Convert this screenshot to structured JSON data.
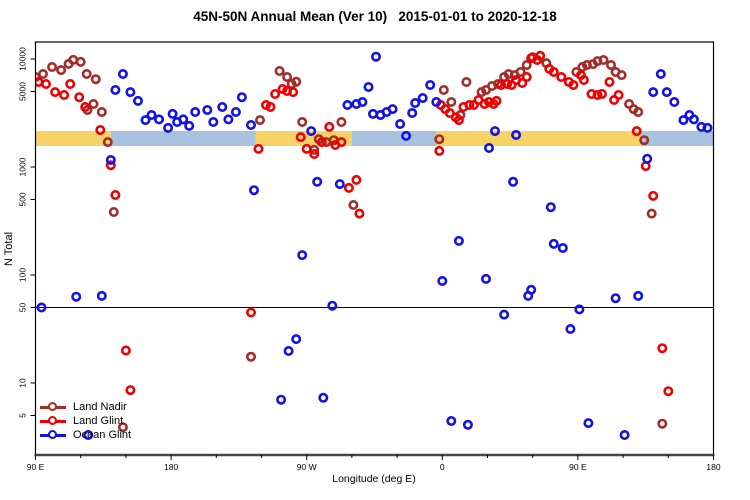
{
  "title": "45N-50N Annual Mean (Ver 10)   2015-01-01 to 2020-12-18",
  "legend": {
    "items": [
      {
        "label": "Land Nadir",
        "color": "#A52A2A"
      },
      {
        "label": "Land Glint",
        "color": "#EE0000"
      },
      {
        "label": "Ocean Glint",
        "color": "#1111E8"
      }
    ]
  },
  "chart_data": {
    "type": "scatter",
    "title": "45N-50N Annual Mean (Ver 10)   2015-01-01 to 2020-12-18",
    "xlabel": "Longitude (deg E)",
    "ylabel": "N Total",
    "x_axis": {
      "range": [
        90,
        540
      ],
      "major_ticks": [
        {
          "value": 90,
          "label": "90 E"
        },
        {
          "value": 180,
          "label": "180"
        },
        {
          "value": 270,
          "label": "90 W"
        },
        {
          "value": 360,
          "label": "0"
        },
        {
          "value": 450,
          "label": "90 E"
        },
        {
          "value": 540,
          "label": "180"
        }
      ],
      "minor_step": 30
    },
    "y_axis": {
      "scale": "log",
      "range": [
        2.15,
        14350
      ],
      "ticks": [
        10000,
        5000,
        1000,
        500,
        100,
        50,
        10,
        5
      ]
    },
    "reference_line": {
      "value": 50,
      "color": "#000000"
    },
    "bands": {
      "yellow": {
        "color": "#F7D267",
        "value_range": [
          1565,
          2155
        ],
        "segments": [
          [
            90,
            540
          ]
        ]
      },
      "blue": {
        "color": "#A9C2DF",
        "value_range": [
          1565,
          2155
        ],
        "segments": [
          [
            140,
            236
          ],
          [
            300,
            356
          ],
          [
            492,
            540
          ]
        ]
      }
    },
    "grid": false,
    "legend_position": "bottom-left",
    "series": [
      {
        "name": "Land Nadir",
        "color": "#A52A2A",
        "points": [
          [
            90,
            6800
          ],
          [
            95,
            7260
          ],
          [
            101,
            8430
          ],
          [
            107,
            7900
          ],
          [
            112,
            9000
          ],
          [
            115,
            9800
          ],
          [
            120,
            9400
          ],
          [
            124,
            7260
          ],
          [
            130,
            6500
          ],
          [
            124.5,
            3370
          ],
          [
            128.5,
            3830
          ],
          [
            134,
            3230
          ],
          [
            138,
            1700
          ],
          [
            142,
            383
          ],
          [
            148,
            3.9
          ],
          [
            233,
            17.5
          ],
          [
            239,
            2720
          ],
          [
            252,
            7740
          ],
          [
            257,
            6810
          ],
          [
            260,
            5870
          ],
          [
            263,
            6150
          ],
          [
            267,
            2610
          ],
          [
            275,
            1440
          ],
          [
            278,
            1810
          ],
          [
            283,
            1700
          ],
          [
            288,
            1770
          ],
          [
            293,
            2610
          ],
          [
            301,
            445
          ],
          [
            358,
            1810
          ],
          [
            361,
            5160
          ],
          [
            366,
            4000
          ],
          [
            372,
            3030
          ],
          [
            376,
            6130
          ],
          [
            386,
            4940
          ],
          [
            389,
            5160
          ],
          [
            393,
            5620
          ],
          [
            397,
            5870
          ],
          [
            401,
            6810
          ],
          [
            404,
            7260
          ],
          [
            408,
            7100
          ],
          [
            412,
            7580
          ],
          [
            416,
            8800
          ],
          [
            420,
            10400
          ],
          [
            429,
            9170
          ],
          [
            449,
            7580
          ],
          [
            453,
            8430
          ],
          [
            456,
            8800
          ],
          [
            460,
            8970
          ],
          [
            463,
            9560
          ],
          [
            467,
            9790
          ],
          [
            472,
            8800
          ],
          [
            475,
            7580
          ],
          [
            479,
            7100
          ],
          [
            484,
            3830
          ],
          [
            487,
            3440
          ],
          [
            490,
            3230
          ],
          [
            494,
            1770
          ],
          [
            499,
            370
          ],
          [
            506,
            4.2
          ]
        ]
      },
      {
        "name": "Land Glint",
        "color": "#EE0000",
        "points": [
          [
            92,
            6130
          ],
          [
            97,
            5870
          ],
          [
            103,
            4940
          ],
          [
            109,
            4640
          ],
          [
            113,
            5870
          ],
          [
            119,
            4430
          ],
          [
            123,
            3590
          ],
          [
            133,
            2200
          ],
          [
            140,
            1040
          ],
          [
            143,
            550
          ],
          [
            150,
            20
          ],
          [
            153,
            8.6
          ],
          [
            233,
            45
          ],
          [
            238,
            1470
          ],
          [
            243,
            3750
          ],
          [
            246,
            3590
          ],
          [
            249,
            4740
          ],
          [
            254,
            5280
          ],
          [
            257,
            5050
          ],
          [
            261,
            4940
          ],
          [
            266,
            1890
          ],
          [
            270,
            1470
          ],
          [
            275,
            1320
          ],
          [
            280,
            1700
          ],
          [
            285,
            2350
          ],
          [
            289,
            1600
          ],
          [
            293,
            1700
          ],
          [
            298,
            640
          ],
          [
            303,
            760
          ],
          [
            305,
            370
          ],
          [
            358,
            1410
          ],
          [
            359,
            3750
          ],
          [
            362,
            3440
          ],
          [
            365,
            3160
          ],
          [
            369,
            2880
          ],
          [
            371,
            2720
          ],
          [
            374,
            3590
          ],
          [
            378,
            3750
          ],
          [
            381,
            3750
          ],
          [
            384,
            4170
          ],
          [
            388,
            3830
          ],
          [
            391,
            4000
          ],
          [
            394,
            3830
          ],
          [
            396,
            4090
          ],
          [
            399,
            5740
          ],
          [
            403,
            5870
          ],
          [
            406,
            5740
          ],
          [
            409,
            6390
          ],
          [
            413,
            6000
          ],
          [
            416,
            6810
          ],
          [
            419,
            10200
          ],
          [
            423,
            9790
          ],
          [
            425,
            10700
          ],
          [
            431,
            8100
          ],
          [
            434,
            7580
          ],
          [
            439,
            6810
          ],
          [
            444,
            6130
          ],
          [
            447,
            5740
          ],
          [
            452,
            7100
          ],
          [
            454,
            6390
          ],
          [
            459,
            4740
          ],
          [
            463,
            4640
          ],
          [
            466,
            4740
          ],
          [
            471,
            6130
          ],
          [
            474,
            4170
          ],
          [
            477,
            4640
          ],
          [
            489,
            2150
          ],
          [
            495,
            1020
          ],
          [
            500,
            540
          ],
          [
            506,
            21
          ],
          [
            510,
            8.4
          ]
        ]
      },
      {
        "name": "Ocean Glint",
        "color": "#1111E8",
        "points": [
          [
            94,
            50
          ],
          [
            117,
            63
          ],
          [
            125,
            3.3
          ],
          [
            134,
            64
          ],
          [
            140,
            1160
          ],
          [
            143,
            5160
          ],
          [
            148,
            7260
          ],
          [
            153,
            4940
          ],
          [
            158,
            4090
          ],
          [
            163,
            2720
          ],
          [
            167,
            3030
          ],
          [
            172,
            2760
          ],
          [
            178,
            2300
          ],
          [
            181,
            3100
          ],
          [
            184,
            2610
          ],
          [
            188,
            2760
          ],
          [
            192,
            2400
          ],
          [
            196,
            3230
          ],
          [
            204,
            3370
          ],
          [
            208,
            2610
          ],
          [
            214,
            3590
          ],
          [
            218,
            2760
          ],
          [
            223,
            3230
          ],
          [
            227,
            4430
          ],
          [
            233,
            2450
          ],
          [
            235,
            610
          ],
          [
            253,
            7
          ],
          [
            258,
            19.8
          ],
          [
            263,
            25.5
          ],
          [
            267,
            153
          ],
          [
            273,
            2150
          ],
          [
            277,
            730
          ],
          [
            281,
            7.3
          ],
          [
            287,
            52
          ],
          [
            292,
            695
          ],
          [
            297,
            3750
          ],
          [
            303,
            3830
          ],
          [
            307,
            4000
          ],
          [
            311,
            5510
          ],
          [
            314,
            3100
          ],
          [
            316,
            10500
          ],
          [
            319,
            3030
          ],
          [
            323,
            3230
          ],
          [
            327,
            3440
          ],
          [
            332,
            2500
          ],
          [
            336,
            1940
          ],
          [
            340,
            3160
          ],
          [
            342,
            3910
          ],
          [
            347,
            4350
          ],
          [
            352,
            5740
          ],
          [
            356,
            4000
          ],
          [
            360,
            88
          ],
          [
            366,
            4.45
          ],
          [
            371,
            207
          ],
          [
            377,
            4.1
          ],
          [
            389,
            92
          ],
          [
            391,
            1500
          ],
          [
            395,
            2150
          ],
          [
            401,
            43
          ],
          [
            407,
            730
          ],
          [
            409,
            1980
          ],
          [
            417,
            64
          ],
          [
            419,
            73
          ],
          [
            432,
            424
          ],
          [
            434,
            194
          ],
          [
            440,
            178
          ],
          [
            445,
            31.6
          ],
          [
            451,
            48
          ],
          [
            457,
            4.25
          ],
          [
            475,
            61
          ],
          [
            481,
            3.3
          ],
          [
            490,
            64
          ],
          [
            496,
            1190
          ],
          [
            500,
            4940
          ],
          [
            505,
            7260
          ],
          [
            509,
            4940
          ],
          [
            514,
            4000
          ],
          [
            520,
            2720
          ],
          [
            524,
            3030
          ],
          [
            527,
            2760
          ],
          [
            532,
            2350
          ],
          [
            536,
            2300
          ]
        ]
      }
    ]
  }
}
